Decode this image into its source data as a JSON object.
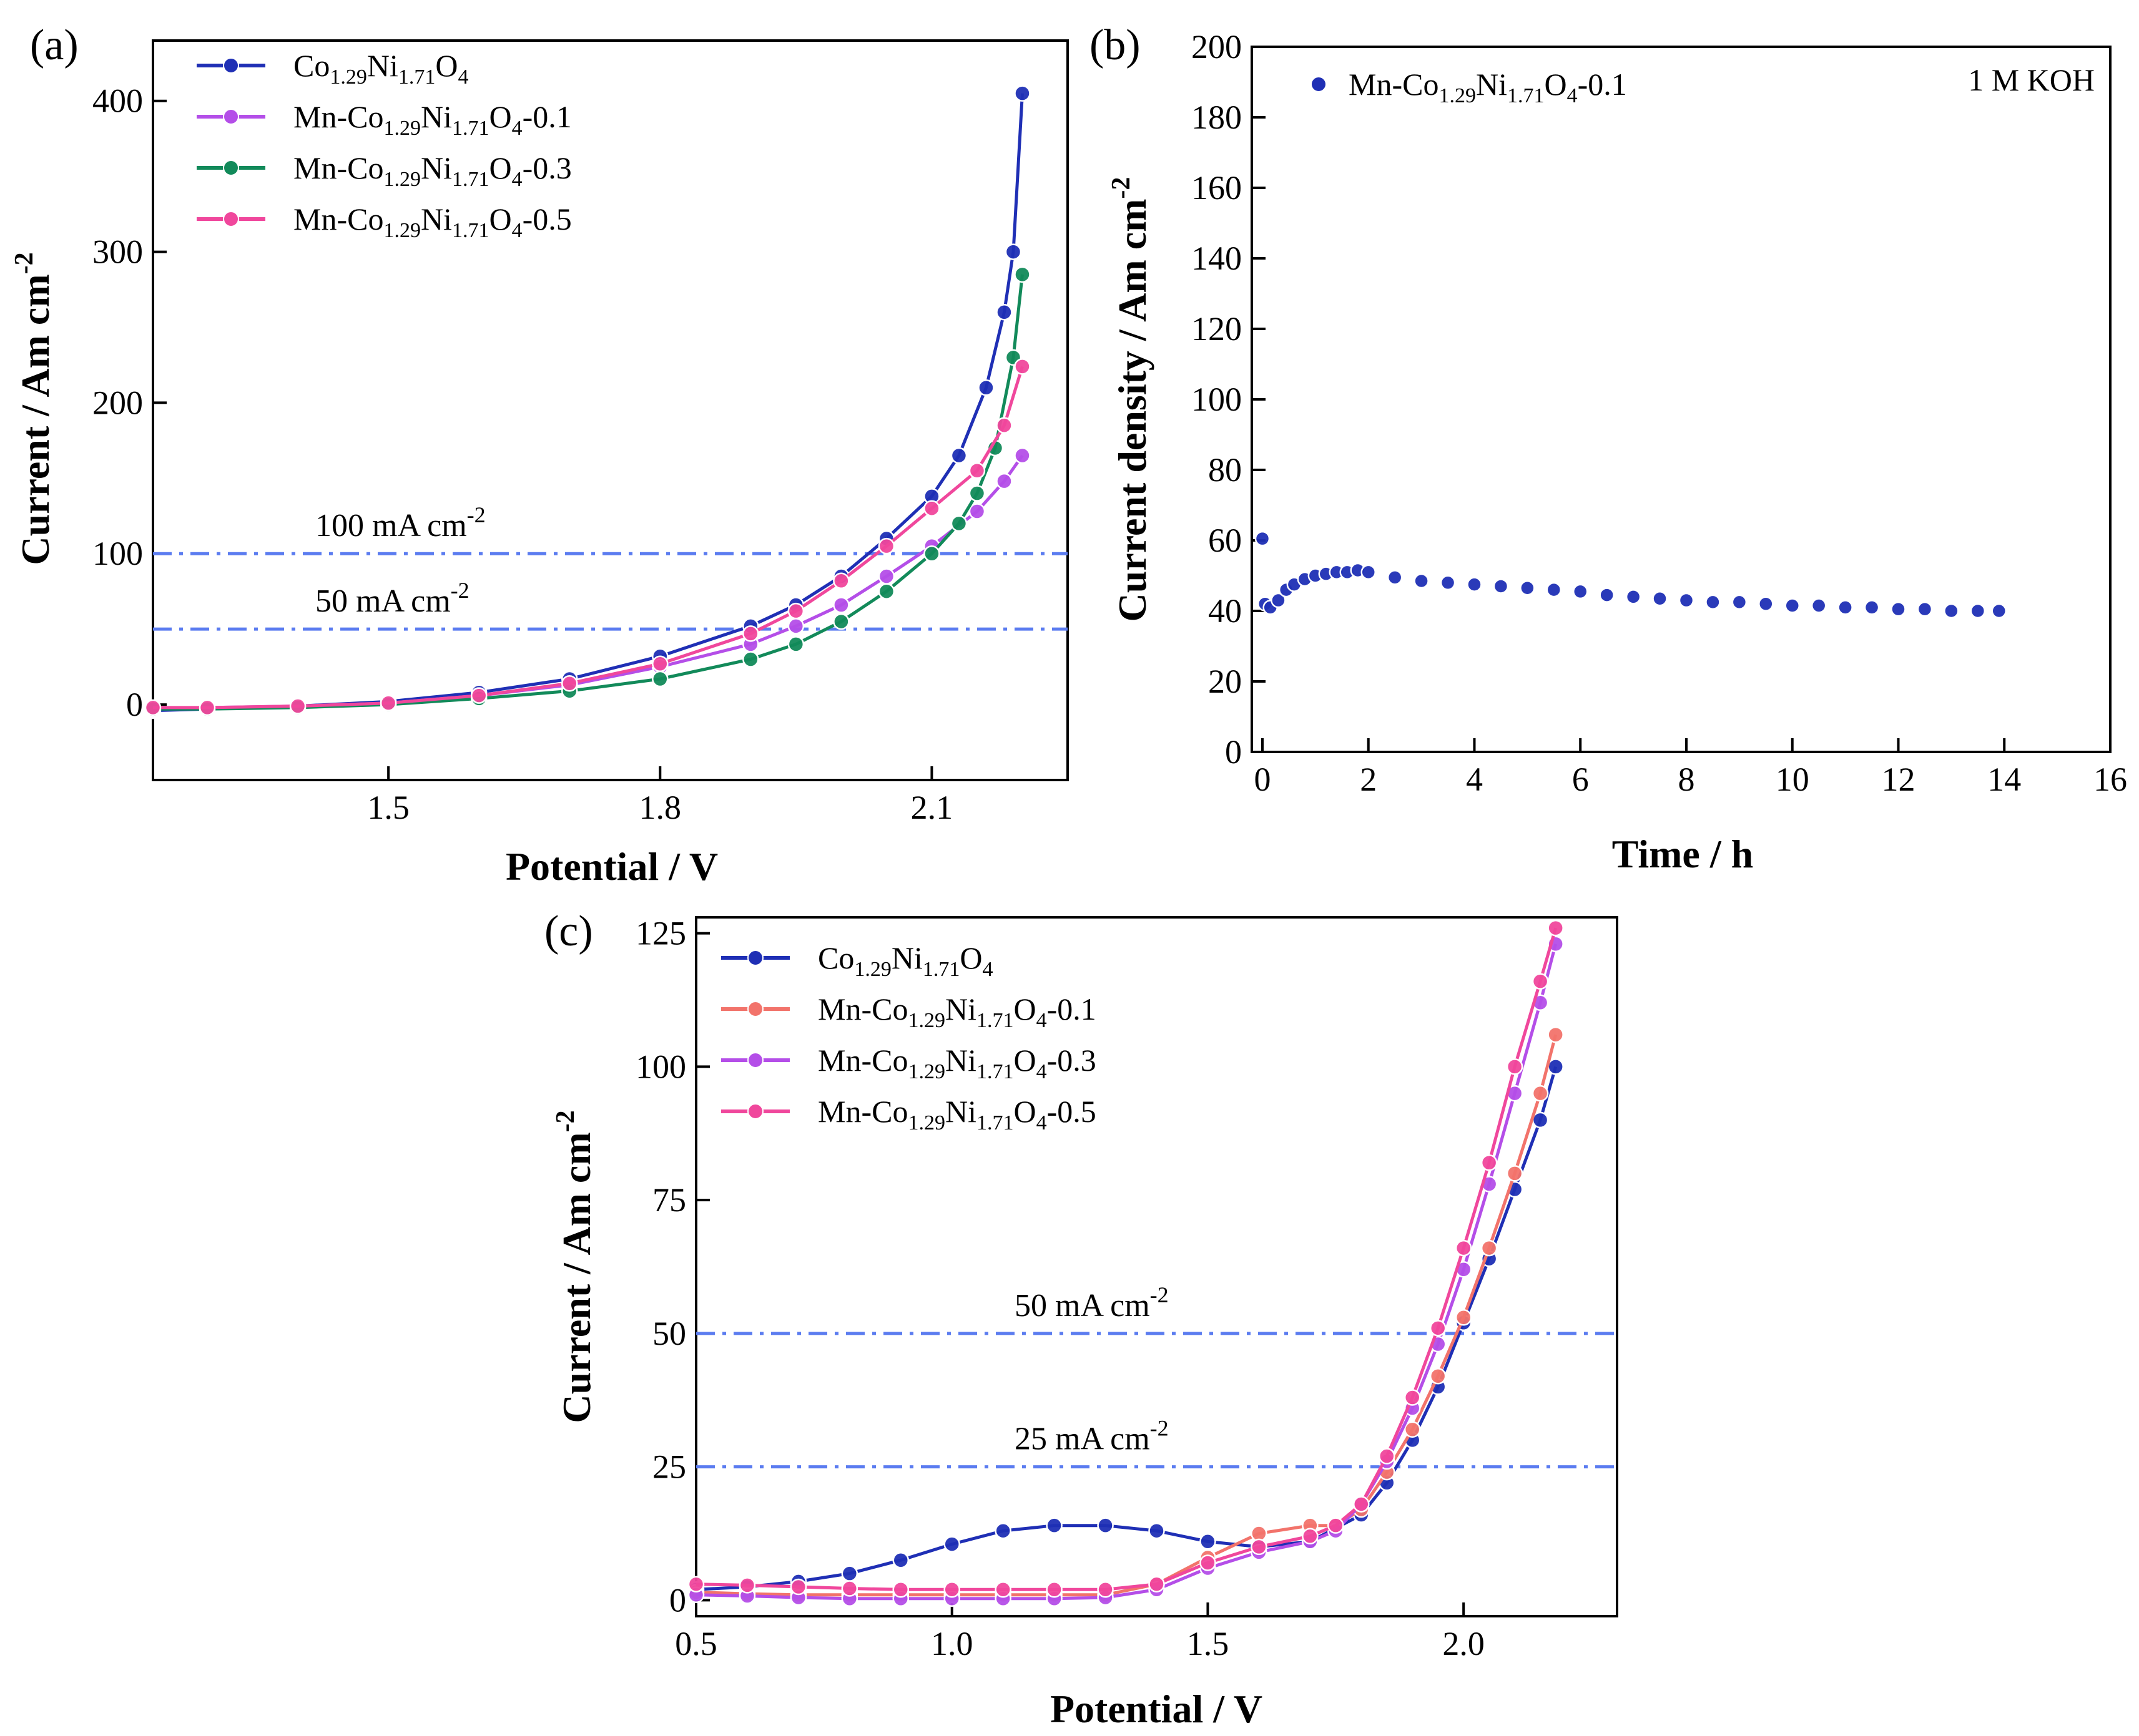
{
  "colors": {
    "blue": "#1f2fb5",
    "violet": "#b44ee8",
    "green": "#128a5a",
    "pink": "#f0479c",
    "salmon": "#f2736b",
    "ref": "#5b7cf0"
  },
  "chart_data": [
    {
      "id": "a",
      "panel_label": "(a)",
      "type": "line",
      "title": "",
      "xlabel": "Potential / V",
      "ylabel": "Current / Am cm",
      "ylabel_sup": "-2",
      "xlim": [
        1.24,
        2.25
      ],
      "ylim": [
        -50,
        440
      ],
      "xticks": [
        1.5,
        1.8,
        2.1
      ],
      "xtick_labels": [
        "1.5",
        "1.8",
        "2.1"
      ],
      "yticks": [
        0,
        100,
        200,
        300,
        400
      ],
      "ytick_labels": [
        "0",
        "100",
        "200",
        "300",
        "400"
      ],
      "legend_position": "top-left",
      "ref_lines": [
        {
          "y": 100,
          "text": "100 mA cm",
          "sup": "-2"
        },
        {
          "y": 50,
          "text": "50 mA cm",
          "sup": "-2"
        }
      ],
      "series": [
        {
          "name": "Co1.29Ni1.71O4",
          "base": "Co",
          "sub1": "1.29",
          "mid": "Ni",
          "sub2": "1.71",
          "tail": "O",
          "sub3": "4",
          "suffix": "",
          "color": "blue",
          "x": [
            1.24,
            1.3,
            1.4,
            1.5,
            1.6,
            1.7,
            1.8,
            1.9,
            1.95,
            2.0,
            2.05,
            2.1,
            2.13,
            2.16,
            2.18,
            2.19,
            2.2
          ],
          "y": [
            -4,
            -3,
            -1,
            2,
            8,
            17,
            32,
            52,
            66,
            85,
            110,
            138,
            165,
            210,
            260,
            300,
            405
          ]
        },
        {
          "name": "Mn-Co1.29Ni1.71O4-0.1",
          "base": "Mn-Co",
          "sub1": "1.29",
          "mid": "Ni",
          "sub2": "1.71",
          "tail": "O",
          "sub3": "4",
          "suffix": "-0.1",
          "color": "violet",
          "x": [
            1.24,
            1.3,
            1.4,
            1.5,
            1.6,
            1.7,
            1.8,
            1.9,
            1.95,
            2.0,
            2.05,
            2.1,
            2.15,
            2.18,
            2.2
          ],
          "y": [
            -3,
            -2,
            -1,
            1,
            6,
            13,
            25,
            40,
            52,
            66,
            85,
            105,
            128,
            148,
            165
          ]
        },
        {
          "name": "Mn-Co1.29Ni1.71O4-0.3",
          "base": "Mn-Co",
          "sub1": "1.29",
          "mid": "Ni",
          "sub2": "1.71",
          "tail": "O",
          "sub3": "4",
          "suffix": "-0.3",
          "color": "green",
          "x": [
            1.24,
            1.3,
            1.4,
            1.5,
            1.6,
            1.7,
            1.8,
            1.9,
            1.95,
            2.0,
            2.05,
            2.1,
            2.13,
            2.15,
            2.17,
            2.19,
            2.2
          ],
          "y": [
            -3,
            -3,
            -2,
            0,
            4,
            9,
            17,
            30,
            40,
            55,
            75,
            100,
            120,
            140,
            170,
            230,
            285
          ]
        },
        {
          "name": "Mn-Co1.29Ni1.71O4-0.5",
          "base": "Mn-Co",
          "sub1": "1.29",
          "mid": "Ni",
          "sub2": "1.71",
          "tail": "O",
          "sub3": "4",
          "suffix": "-0.5",
          "color": "pink",
          "x": [
            1.24,
            1.3,
            1.4,
            1.5,
            1.6,
            1.7,
            1.8,
            1.9,
            1.95,
            2.0,
            2.05,
            2.1,
            2.15,
            2.18,
            2.2
          ],
          "y": [
            -2,
            -2,
            -1,
            1,
            6,
            14,
            27,
            47,
            62,
            82,
            105,
            130,
            155,
            185,
            224
          ]
        }
      ]
    },
    {
      "id": "b",
      "panel_label": "(b)",
      "type": "scatter",
      "title": "",
      "annotation": "1 M KOH",
      "xlabel": "Time / h",
      "ylabel": "Current density / Am cm",
      "ylabel_sup": "-2",
      "xlim": [
        -0.2,
        16
      ],
      "ylim": [
        0,
        200
      ],
      "xticks": [
        0,
        2,
        4,
        6,
        8,
        10,
        12,
        14,
        16
      ],
      "xtick_labels": [
        "0",
        "2",
        "4",
        "6",
        "8",
        "10",
        "12",
        "14",
        "16"
      ],
      "yticks": [
        0,
        20,
        40,
        60,
        80,
        100,
        120,
        140,
        160,
        180,
        200
      ],
      "ytick_labels": [
        "0",
        "20",
        "40",
        "60",
        "80",
        "100",
        "120",
        "140",
        "160",
        "180",
        "200"
      ],
      "legend_position": "top-left",
      "series": [
        {
          "name": "Mn-Co1.29Ni1.71O4-0.1",
          "base": "Mn-Co",
          "sub1": "1.29",
          "mid": "Ni",
          "sub2": "1.71",
          "tail": "O",
          "sub3": "4",
          "suffix": "-0.1",
          "color": "blue",
          "x": [
            0,
            0.05,
            0.15,
            0.3,
            0.45,
            0.6,
            0.8,
            1.0,
            1.2,
            1.4,
            1.6,
            1.8,
            2.0,
            2.5,
            3,
            3.5,
            4,
            4.5,
            5,
            5.5,
            6,
            6.5,
            7,
            7.5,
            8,
            8.5,
            9,
            9.5,
            10,
            10.5,
            11,
            11.5,
            12,
            12.5,
            13,
            13.5,
            13.9
          ],
          "y": [
            60.5,
            42,
            41,
            43,
            46,
            47.5,
            49,
            50,
            50.5,
            51,
            51,
            51.5,
            51,
            49.5,
            48.5,
            48,
            47.5,
            47,
            46.5,
            46,
            45.5,
            44.5,
            44,
            43.5,
            43,
            42.5,
            42.5,
            42,
            41.5,
            41.5,
            41,
            41,
            40.5,
            40.5,
            40,
            40,
            40
          ]
        }
      ]
    },
    {
      "id": "c",
      "panel_label": "(c)",
      "type": "line",
      "title": "",
      "xlabel": "Potential / V",
      "ylabel": "Current / Am cm",
      "ylabel_sup": "-2",
      "xlim": [
        0.5,
        2.3
      ],
      "ylim": [
        -3,
        128
      ],
      "xticks": [
        0.5,
        1.0,
        1.5,
        2.0
      ],
      "xtick_labels": [
        "0.5",
        "1.0",
        "1.5",
        "2.0"
      ],
      "yticks": [
        0,
        25,
        50,
        75,
        100,
        125
      ],
      "ytick_labels": [
        "0",
        "25",
        "50",
        "75",
        "100",
        "125"
      ],
      "legend_position": "top-left",
      "ref_lines": [
        {
          "y": 50,
          "text": "50 mA cm",
          "sup": "-2"
        },
        {
          "y": 25,
          "text": "25 mA cm",
          "sup": "-2"
        }
      ],
      "series": [
        {
          "name": "Co1.29Ni1.71O4",
          "base": "Co",
          "sub1": "1.29",
          "mid": "Ni",
          "sub2": "1.71",
          "tail": "O",
          "sub3": "4",
          "suffix": "",
          "color": "blue",
          "x": [
            0.5,
            0.6,
            0.7,
            0.8,
            0.9,
            1.0,
            1.1,
            1.2,
            1.3,
            1.4,
            1.5,
            1.6,
            1.7,
            1.8,
            1.85,
            1.9,
            1.95,
            2.0,
            2.05,
            2.1,
            2.15,
            2.18
          ],
          "y": [
            2,
            2.5,
            3.5,
            5,
            7.5,
            10.5,
            13,
            14,
            14,
            13,
            11,
            10,
            11,
            16,
            22,
            30,
            40,
            52,
            64,
            77,
            90,
            100
          ]
        },
        {
          "name": "Mn-Co1.29Ni1.71O4-0.1",
          "base": "Mn-Co",
          "sub1": "1.29",
          "mid": "Ni",
          "sub2": "1.71",
          "tail": "O",
          "sub3": "4",
          "suffix": "-0.1",
          "color": "salmon",
          "x": [
            0.5,
            0.6,
            0.7,
            0.8,
            0.9,
            1.0,
            1.1,
            1.2,
            1.3,
            1.4,
            1.5,
            1.6,
            1.7,
            1.75,
            1.8,
            1.85,
            1.9,
            1.95,
            2.0,
            2.05,
            2.1,
            2.15,
            2.18
          ],
          "y": [
            1.5,
            1.2,
            1,
            1,
            1,
            1,
            1,
            1,
            1,
            3,
            8,
            12.5,
            14,
            14,
            17,
            24,
            32,
            42,
            53,
            66,
            80,
            95,
            106
          ]
        },
        {
          "name": "Mn-Co1.29Ni1.71O4-0.3",
          "base": "Mn-Co",
          "sub1": "1.29",
          "mid": "Ni",
          "sub2": "1.71",
          "tail": "O",
          "sub3": "4",
          "suffix": "-0.3",
          "color": "violet",
          "x": [
            0.5,
            0.6,
            0.7,
            0.8,
            0.9,
            1.0,
            1.1,
            1.2,
            1.3,
            1.4,
            1.5,
            1.6,
            1.7,
            1.75,
            1.8,
            1.85,
            1.9,
            1.95,
            2.0,
            2.05,
            2.1,
            2.15,
            2.18
          ],
          "y": [
            1,
            0.8,
            0.5,
            0.3,
            0.3,
            0.3,
            0.3,
            0.3,
            0.5,
            2,
            6,
            9,
            11,
            13,
            18,
            26,
            36,
            48,
            62,
            78,
            95,
            112,
            123
          ]
        },
        {
          "name": "Mn-Co1.29Ni1.71O4-0.5",
          "base": "Mn-Co",
          "sub1": "1.29",
          "mid": "Ni",
          "sub2": "1.71",
          "tail": "O",
          "sub3": "4",
          "suffix": "-0.5",
          "color": "pink",
          "x": [
            0.5,
            0.6,
            0.7,
            0.8,
            0.9,
            1.0,
            1.1,
            1.2,
            1.3,
            1.4,
            1.5,
            1.6,
            1.7,
            1.75,
            1.8,
            1.85,
            1.9,
            1.95,
            2.0,
            2.05,
            2.1,
            2.15,
            2.18
          ],
          "y": [
            3,
            2.8,
            2.5,
            2.2,
            2,
            2,
            2,
            2,
            2,
            3,
            7,
            10,
            12,
            14,
            18,
            27,
            38,
            51,
            66,
            82,
            100,
            116,
            126
          ]
        }
      ]
    }
  ]
}
